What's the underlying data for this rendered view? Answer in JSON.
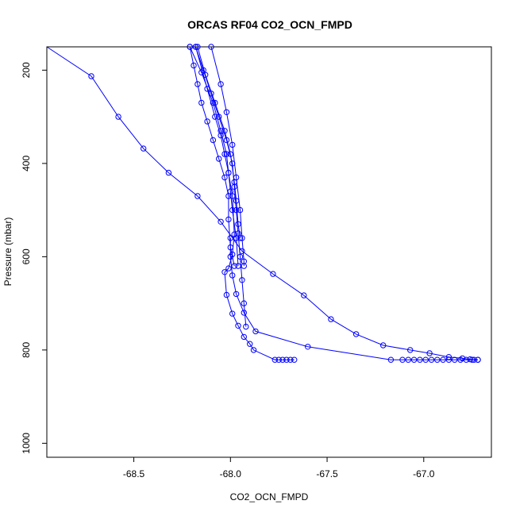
{
  "chart_data": {
    "type": "line",
    "title": "ORCAS RF04 CO2_OCN_FMPD",
    "xlabel": "CO2_OCN_FMPD",
    "ylabel": "Pressure (mbar)",
    "xlim": [
      -68.95,
      -66.65
    ],
    "ylim": [
      1030,
      150
    ],
    "y_inverted": true,
    "xticks": [
      -68.5,
      -68.0,
      -67.5,
      -67.0
    ],
    "xtick_labels": [
      "-68.5",
      "-68.0",
      "-67.5",
      "-67.0"
    ],
    "yticks": [
      200,
      400,
      600,
      800,
      1000
    ],
    "ytick_labels": [
      "200",
      "400",
      "600",
      "800",
      "1000"
    ],
    "grid": false,
    "legend": "none",
    "series_color": "#0000ff",
    "marker": "open-circle",
    "series": [
      {
        "x": [
          -68.95,
          -68.72,
          -68.58,
          -68.45,
          -68.32,
          -68.17,
          -68.05,
          -67.94,
          -67.78,
          -67.62,
          -67.48,
          -67.35,
          -67.21,
          -67.07,
          -66.97,
          -66.87,
          -66.8,
          -66.76,
          -66.74,
          -66.72
        ],
        "y": [
          140,
          213,
          300,
          368,
          420,
          470,
          525,
          588,
          637,
          683,
          734,
          766,
          790,
          800,
          807,
          815,
          818,
          820,
          821,
          821
        ]
      },
      {
        "x": [
          -66.72,
          -66.75,
          -66.78,
          -66.81,
          -66.84,
          -66.87,
          -66.9,
          -66.93,
          -66.96,
          -66.99,
          -67.02,
          -67.05,
          -67.08,
          -67.11,
          -67.17,
          -67.6,
          -67.87,
          -67.93,
          -67.97,
          -67.99,
          -68.0,
          -68.0
        ],
        "y": [
          821,
          821,
          821,
          821,
          821,
          821,
          821,
          821,
          821,
          821,
          821,
          821,
          821,
          821,
          821,
          793,
          760,
          720,
          680,
          640,
          600,
          560
        ]
      },
      {
        "x": [
          -67.67,
          -67.69,
          -67.71,
          -67.73,
          -67.75,
          -67.77,
          -67.88,
          -67.9,
          -67.93,
          -67.96,
          -67.99,
          -68.02,
          -68.03,
          -68.01,
          -67.99,
          -67.98,
          -67.99,
          -68.01,
          -68.03,
          -68.05,
          -68.08,
          -68.12,
          -68.18
        ],
        "y": [
          821,
          821,
          821,
          821,
          821,
          821,
          800,
          787,
          772,
          748,
          722,
          682,
          633,
          625,
          595,
          552,
          470,
          420,
          380,
          340,
          300,
          240,
          150
        ]
      },
      {
        "x": [
          -68.18,
          -68.14,
          -68.1,
          -68.06,
          -68.02,
          -67.99,
          -67.98,
          -67.97,
          -67.96,
          -67.95,
          -67.94,
          -67.93,
          -67.92
        ],
        "y": [
          150,
          200,
          250,
          300,
          350,
          400,
          450,
          500,
          550,
          600,
          650,
          700,
          750
        ]
      },
      {
        "x": [
          -68.21,
          -68.19,
          -68.17,
          -68.15,
          -68.12,
          -68.09,
          -68.06,
          -68.03,
          -68.01,
          -68.01,
          -68.0,
          -67.98
        ],
        "y": [
          150,
          190,
          230,
          270,
          310,
          350,
          390,
          430,
          470,
          520,
          580,
          620
        ]
      },
      {
        "x": [
          -68.21,
          -68.15,
          -68.09,
          -68.05,
          -68.02,
          -68.01,
          -68.0,
          -67.99,
          -67.97,
          -67.96
        ],
        "y": [
          150,
          205,
          270,
          330,
          380,
          420,
          460,
          500,
          560,
          620
        ]
      },
      {
        "x": [
          -68.1,
          -68.05,
          -68.02,
          -67.99,
          -67.97,
          -67.95,
          -67.94,
          -67.93,
          -67.93
        ],
        "y": [
          150,
          230,
          290,
          360,
          430,
          500,
          560,
          610,
          620
        ]
      },
      {
        "x": [
          -68.17,
          -68.13,
          -68.08,
          -68.03,
          -68.0,
          -67.98,
          -67.97,
          -67.96,
          -67.95
        ],
        "y": [
          150,
          210,
          270,
          330,
          380,
          440,
          480,
          530,
          560
        ]
      }
    ]
  }
}
